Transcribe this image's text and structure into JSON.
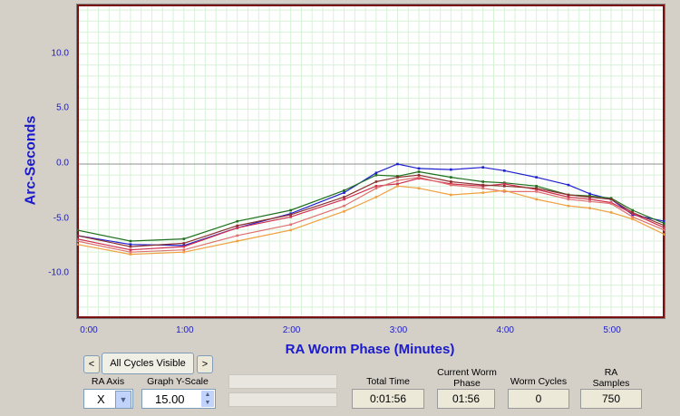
{
  "chart_data": {
    "type": "line",
    "ylabel": "Arc-Seconds",
    "xlabel": "RA Worm Phase (Minutes)",
    "xlim": [
      0,
      5.5
    ],
    "ylim": [
      -14,
      14.5
    ],
    "x_ticks": [
      "0:00",
      "1:00",
      "2:00",
      "3:00",
      "4:00",
      "5:00"
    ],
    "y_ticks": [
      "10.0",
      "5.0",
      "0.0",
      "-5.0",
      "-10.0"
    ],
    "y_tick_values": [
      10,
      5,
      0,
      -5,
      -10
    ],
    "grid": true,
    "series": [
      {
        "color": "#2020d0",
        "x": [
          0,
          0.5,
          1,
          1.5,
          2,
          2.5,
          2.8,
          3,
          3.2,
          3.5,
          3.8,
          4,
          4.3,
          4.6,
          4.8,
          5,
          5.2,
          5.5
        ],
        "values": [
          -6.5,
          -7.3,
          -7.4,
          -5.8,
          -4.5,
          -2.6,
          -0.8,
          0,
          -0.4,
          -0.5,
          -0.3,
          -0.6,
          -1.2,
          -1.9,
          -2.7,
          -3.2,
          -4.6,
          -5.2
        ]
      },
      {
        "color": "#207020",
        "x": [
          0,
          0.5,
          1,
          1.5,
          2,
          2.5,
          2.8,
          3,
          3.2,
          3.5,
          3.8,
          4,
          4.3,
          4.6,
          4.8,
          5,
          5.2,
          5.5
        ],
        "values": [
          -6.0,
          -7.0,
          -6.8,
          -5.2,
          -4.2,
          -2.4,
          -1.0,
          -1.1,
          -0.7,
          -1.2,
          -1.6,
          -1.7,
          -2.0,
          -2.8,
          -2.9,
          -3.1,
          -4.2,
          -5.4
        ]
      },
      {
        "color": "#d03050",
        "x": [
          0,
          0.5,
          1,
          1.5,
          2,
          2.5,
          2.8,
          3,
          3.2,
          3.5,
          3.8,
          4,
          4.3,
          4.6,
          4.8,
          5,
          5.2,
          5.5
        ],
        "values": [
          -6.8,
          -7.8,
          -7.5,
          -5.8,
          -4.8,
          -3.2,
          -2.0,
          -1.8,
          -1.3,
          -1.8,
          -2.0,
          -1.8,
          -2.3,
          -3.0,
          -3.2,
          -3.5,
          -4.5,
          -5.8
        ]
      },
      {
        "color": "#e07070",
        "x": [
          0,
          0.5,
          1,
          1.5,
          2,
          2.5,
          2.8,
          3,
          3.2,
          3.5,
          3.8,
          4,
          4.3,
          4.6,
          4.8,
          5,
          5.2,
          5.5
        ],
        "values": [
          -7.0,
          -8.0,
          -7.8,
          -6.5,
          -5.5,
          -3.8,
          -2.2,
          -1.5,
          -1.2,
          -1.9,
          -2.2,
          -2.5,
          -2.5,
          -3.2,
          -3.4,
          -3.6,
          -4.8,
          -6.0
        ]
      },
      {
        "color": "#8b3030",
        "x": [
          0,
          0.5,
          1,
          1.5,
          2,
          2.5,
          2.8,
          3,
          3.2,
          3.5,
          3.8,
          4,
          4.3,
          4.6,
          4.8,
          5,
          5.2,
          5.5
        ],
        "values": [
          -6.5,
          -7.5,
          -7.2,
          -5.6,
          -4.6,
          -3.0,
          -1.6,
          -1.2,
          -1.0,
          -1.6,
          -1.9,
          -2.0,
          -2.2,
          -2.8,
          -3.0,
          -3.2,
          -4.4,
          -5.6
        ]
      },
      {
        "color": "#f0a040",
        "x": [
          0,
          0.5,
          1,
          1.5,
          2,
          2.5,
          2.8,
          3,
          3.2,
          3.5,
          3.8,
          4,
          4.3,
          4.6,
          4.8,
          5,
          5.2,
          5.5
        ],
        "values": [
          -7.3,
          -8.2,
          -8.0,
          -7.0,
          -6.0,
          -4.3,
          -3.0,
          -2.0,
          -2.2,
          -2.8,
          -2.6,
          -2.4,
          -3.2,
          -3.8,
          -4.0,
          -4.4,
          -5.0,
          -6.4
        ]
      }
    ]
  },
  "controls": {
    "prev_label": "<",
    "next_label": ">",
    "cycles_label": "All Cycles Visible",
    "ra_axis_label": "RA Axis",
    "ra_axis_value": "X",
    "y_scale_label": "Graph Y-Scale",
    "y_scale_value": "15.00",
    "total_time_label": "Total Time",
    "total_time_value": "0:01:56",
    "worm_phase_label": "Current Worm\nPhase",
    "worm_phase_value": "01:56",
    "worm_cycles_label": "Worm Cycles",
    "worm_cycles_value": "0",
    "ra_samples_label": "RA\nSamples",
    "ra_samples_value": "750"
  }
}
